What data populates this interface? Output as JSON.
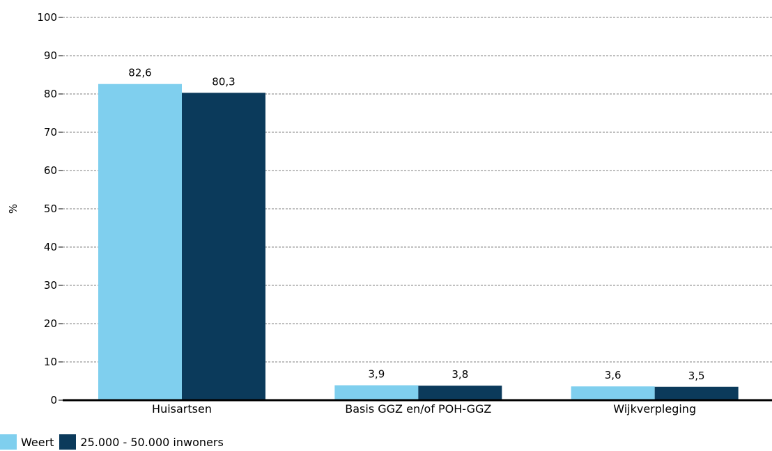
{
  "chart_data": {
    "type": "bar",
    "ylabel": "%",
    "ylim": [
      0,
      100
    ],
    "yticks": [
      0,
      10,
      20,
      30,
      40,
      50,
      60,
      70,
      80,
      90,
      100
    ],
    "grid": true,
    "legend_position": "bottom-left",
    "categories": [
      "Huisartsen",
      "Basis GGZ en/of POH-GGZ",
      "Wijkverpleging"
    ],
    "series": [
      {
        "name": "Weert",
        "color": "#7fcfee",
        "values": [
          82.6,
          3.9,
          3.6
        ],
        "labels": [
          "82,6",
          "3,9",
          "3,6"
        ]
      },
      {
        "name": "25.000 - 50.000 inwoners",
        "color": "#0b3a5b",
        "values": [
          80.3,
          3.8,
          3.5
        ],
        "labels": [
          "80,3",
          "3,8",
          "3,5"
        ]
      }
    ]
  }
}
